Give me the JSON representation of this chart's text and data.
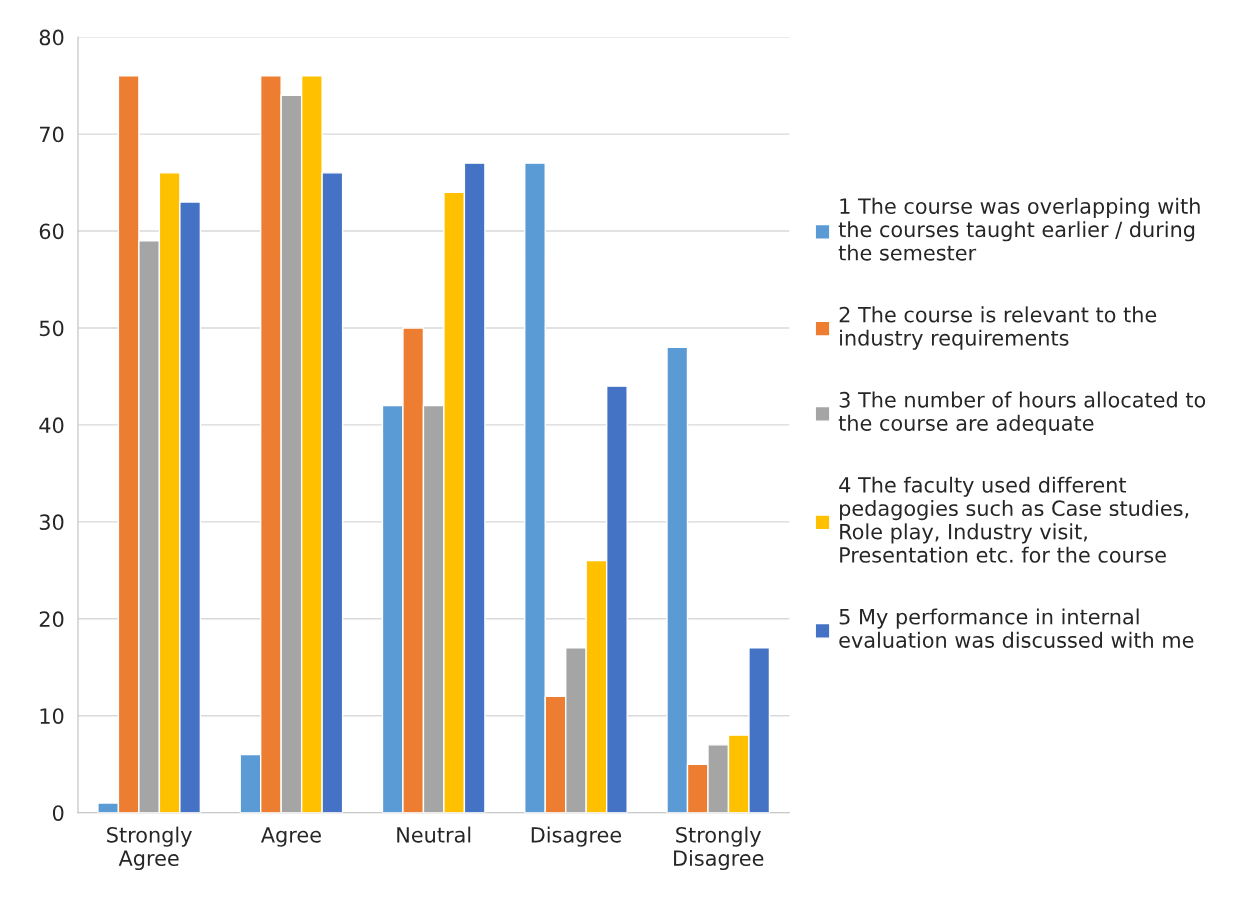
{
  "chart_data": {
    "type": "bar",
    "categories": [
      "Strongly\nAgree",
      "Agree",
      "Neutral",
      "Disagree",
      "Strongly\nDisagree"
    ],
    "series": [
      {
        "name": "1 The course was overlapping with\nthe courses taught earlier / during\nthe semester",
        "color": "#5b9bd5",
        "values": [
          1,
          6,
          42,
          67,
          48
        ]
      },
      {
        "name": "2 The course is relevant to the\nindustry requirements",
        "color": "#ed7d31",
        "values": [
          76,
          76,
          50,
          12,
          5
        ]
      },
      {
        "name": "3 The number of hours allocated to\nthe course are adequate",
        "color": "#a5a5a5",
        "values": [
          59,
          74,
          42,
          17,
          7
        ]
      },
      {
        "name": "4 The faculty used different\npedagogies such as Case studies,\nRole play, Industry visit,\nPresentation etc. for the course",
        "color": "#ffc000",
        "values": [
          66,
          76,
          64,
          26,
          8
        ]
      },
      {
        "name": "5 My performance in internal\nevaluation was discussed with me",
        "color": "#4472c4",
        "values": [
          63,
          66,
          67,
          44,
          17
        ]
      }
    ],
    "ylim": [
      0,
      80
    ],
    "yticks": [
      0,
      10,
      20,
      30,
      40,
      50,
      60,
      70,
      80
    ],
    "grid": "y",
    "legend": "right"
  }
}
